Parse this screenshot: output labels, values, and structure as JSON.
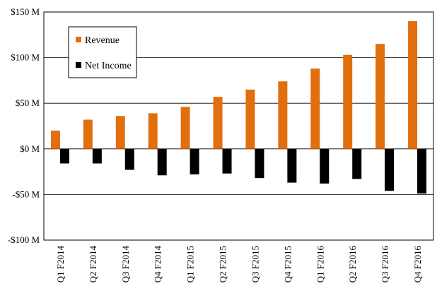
{
  "chart_data": {
    "type": "bar",
    "categories": [
      "Q1 F2014",
      "Q2 F2014",
      "Q3 F2014",
      "Q4 F2014",
      "Q1 F2015",
      "Q2 F2015",
      "Q3 F2015",
      "Q4 F2015",
      "Q1 F2016",
      "Q2 F2016",
      "Q3 F2016",
      "Q4 F2016"
    ],
    "series": [
      {
        "name": "Revenue",
        "color": "#e26f0d",
        "values": [
          20,
          32,
          36,
          39,
          46,
          57,
          65,
          74,
          88,
          103,
          115,
          140
        ]
      },
      {
        "name": "Net Income",
        "color": "#000000",
        "values": [
          -16,
          -16,
          -23,
          -29,
          -28,
          -27,
          -32,
          -37,
          -38,
          -33,
          -46,
          -49
        ]
      }
    ],
    "y_ticks": [
      {
        "value": 150,
        "label": "$150 M"
      },
      {
        "value": 100,
        "label": "$100 M"
      },
      {
        "value": 50,
        "label": "$50 M"
      },
      {
        "value": 0,
        "label": "$0 M"
      },
      {
        "value": -50,
        "label": "-$50 M"
      },
      {
        "value": -100,
        "label": "-$100 M"
      }
    ],
    "ylim": [
      -100,
      150
    ],
    "grid": true,
    "legend": "top-left",
    "title": "",
    "xlabel": "",
    "ylabel": ""
  }
}
